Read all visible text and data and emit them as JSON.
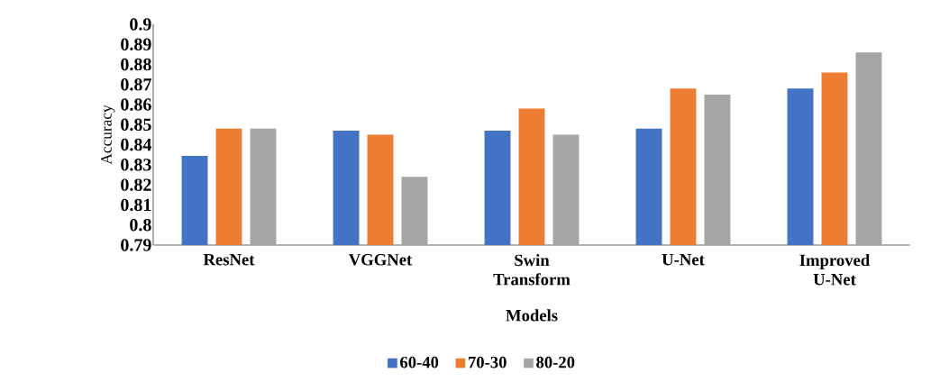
{
  "chart_data": {
    "type": "bar",
    "xlabel": "Models",
    "ylabel": "Accuracy",
    "categories": [
      "ResNet",
      "VGGNet",
      "Swin Transform",
      "U-Net",
      "Improved U-Net"
    ],
    "series": [
      {
        "name": "60-40",
        "color": "#4472c4",
        "values": [
          0.8345,
          0.847,
          0.847,
          0.848,
          0.868
        ]
      },
      {
        "name": "70-30",
        "color": "#ed7d31",
        "values": [
          0.848,
          0.845,
          0.858,
          0.868,
          0.876
        ]
      },
      {
        "name": "80-20",
        "color": "#a5a5a5",
        "values": [
          0.848,
          0.824,
          0.845,
          0.865,
          0.886
        ]
      }
    ],
    "ylim": [
      0.79,
      0.9
    ],
    "yticks": [
      0.79,
      0.8,
      0.81,
      0.82,
      0.83,
      0.84,
      0.85,
      0.86,
      0.87,
      0.88,
      0.89,
      0.9
    ],
    "grid": false,
    "legend": "bottom"
  }
}
